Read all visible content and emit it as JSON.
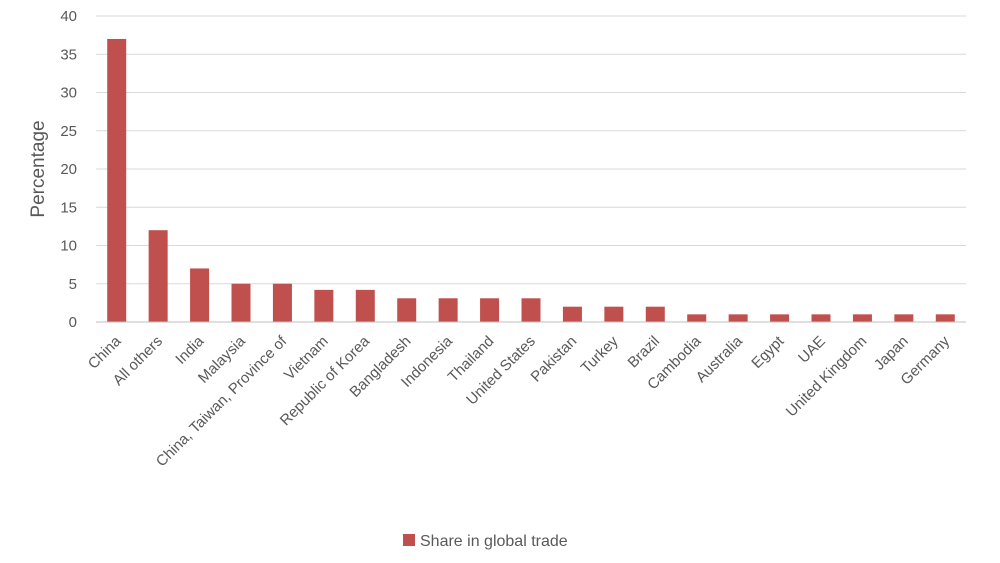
{
  "chart_data": {
    "type": "bar",
    "title": "",
    "xlabel": "",
    "ylabel": "Percentage",
    "ylim": [
      0,
      40
    ],
    "yticks": [
      0,
      5,
      10,
      15,
      20,
      25,
      30,
      35,
      40
    ],
    "grid": true,
    "legend_position": "bottom",
    "categories": [
      "China",
      "All others",
      "India",
      "Malaysia",
      "China, Taiwan, Province of",
      "Vietnam",
      "Republic of Korea",
      "Bangladesh",
      "Indonesia",
      "Thailand",
      "United States",
      "Pakistan",
      "Turkey",
      "Brazil",
      "Cambodia",
      "Australia",
      "Egypt",
      "UAE",
      "United Kingdom",
      "Japan",
      "Germany"
    ],
    "series": [
      {
        "name": "Share in global trade",
        "color": "#c0504d",
        "values": [
          37,
          12,
          7,
          5,
          5,
          4.2,
          4.2,
          3.1,
          3.1,
          3.1,
          3.1,
          2,
          2,
          2,
          1,
          1,
          1,
          1,
          1,
          1,
          1
        ]
      }
    ]
  }
}
